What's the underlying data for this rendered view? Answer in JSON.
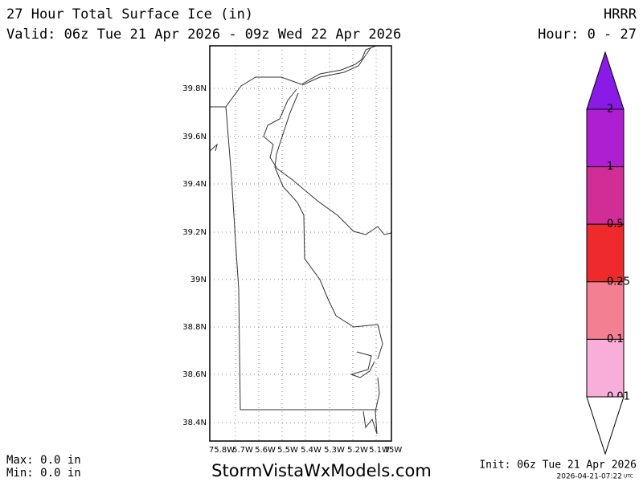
{
  "header": {
    "title": "27 Hour Total Surface Ice (in)",
    "valid": "Valid: 06z Tue 21 Apr 2026 - 09z Wed 22 Apr 2026",
    "model": "HRRR",
    "hours": "Hour: 0 - 27"
  },
  "map": {
    "lat_labels": [
      "39.8N",
      "39.6N",
      "39.4N",
      "39.2N",
      "39N",
      "38.8N",
      "38.6N",
      "38.4N"
    ],
    "lon_labels": [
      "75.8W",
      "5.7W",
      "5.6W",
      "5.5W",
      "5.4W",
      "5.3W",
      "5.2W",
      "5.1W",
      "75W"
    ]
  },
  "legend": {
    "over_color": "#8a1ae6",
    "under_color": "#ffffff",
    "levels": [
      {
        "label": "2",
        "color": "#ae1fd2"
      },
      {
        "label": "1",
        "color": "#d22c96"
      },
      {
        "label": "0.5",
        "color": "#ee2a2c"
      },
      {
        "label": "0.25",
        "color": "#f27f92"
      },
      {
        "label": "0.1",
        "color": "#f8aed8"
      },
      {
        "label": "0.01"
      }
    ]
  },
  "footer": {
    "max": "Max: 0.0 in",
    "min": "Min: 0.0 in",
    "site": "StormVistaWxModels.com",
    "init": "Init: 06z Tue 21 Apr 2026",
    "timestamp": "2026-04-21-07:22",
    "tz": "UTC"
  }
}
